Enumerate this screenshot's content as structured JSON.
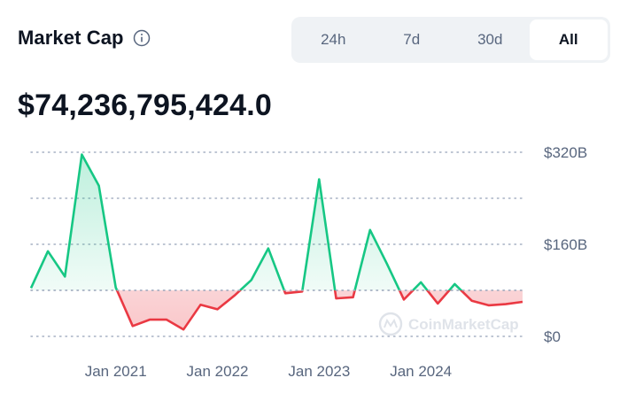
{
  "header": {
    "title": "Market Cap",
    "info_icon": "info-circle-icon"
  },
  "tabs": [
    {
      "label": "24h",
      "active": false
    },
    {
      "label": "7d",
      "active": false
    },
    {
      "label": "30d",
      "active": false
    },
    {
      "label": "All",
      "active": true
    }
  ],
  "market_cap_value": "$74,236,795,424.0",
  "watermark": "CoinMarketCap",
  "colors": {
    "up": "#16c784",
    "down": "#ea3943",
    "text": "#0d1421",
    "muted": "#58667e",
    "grid": "#a6b0c3"
  },
  "chart_data": {
    "type": "area",
    "ylim": [
      0,
      320
    ],
    "y_unit": "B",
    "y_tick_labels": [
      "$320B",
      "$160B",
      "$0"
    ],
    "x_tick_labels": [
      "Jan 2021",
      "Jan 2022",
      "Jan 2023",
      "Jan 2024"
    ],
    "baseline": 80,
    "grid": true,
    "series": [
      {
        "x": [
          "2020-03",
          "2020-05",
          "2020-07",
          "2020-09",
          "2020-11",
          "2021-01",
          "2021-03",
          "2021-05",
          "2021-07",
          "2021-09",
          "2021-11",
          "2022-01",
          "2022-03",
          "2022-05",
          "2022-07",
          "2022-09",
          "2022-11",
          "2023-01",
          "2023-03",
          "2023-05",
          "2023-07",
          "2023-09",
          "2023-11",
          "2024-01",
          "2024-03",
          "2024-05",
          "2024-07",
          "2024-09",
          "2024-11",
          "2025-01"
        ],
        "values": [
          84,
          148,
          104,
          316,
          262,
          85,
          18,
          29,
          29,
          12,
          55,
          47,
          71,
          98,
          153,
          75,
          78,
          273,
          66,
          68,
          185,
          126,
          64,
          94,
          57,
          91,
          62,
          54,
          56,
          60
        ]
      }
    ]
  }
}
